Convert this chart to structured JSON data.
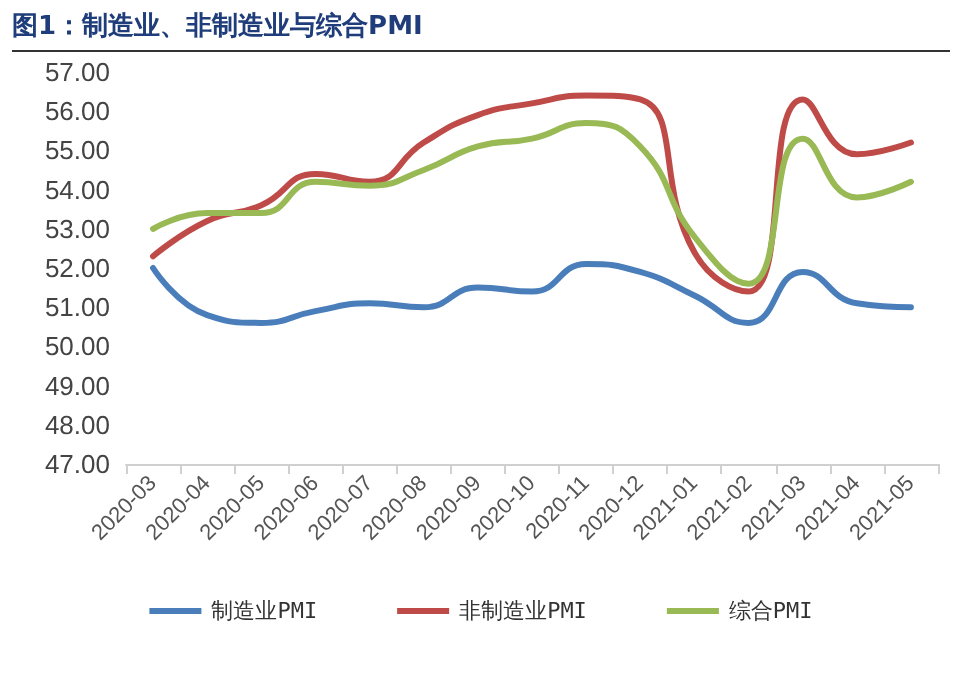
{
  "chart_data": {
    "type": "line",
    "title": "图1：制造业、非制造业与综合PMI",
    "categories": [
      "2020-03",
      "2020-04",
      "2020-05",
      "2020-06",
      "2020-07",
      "2020-08",
      "2020-09",
      "2020-10",
      "2020-11",
      "2020-12",
      "2021-01",
      "2021-02",
      "2021-03",
      "2021-04",
      "2021-05"
    ],
    "series": [
      {
        "name": "制造业PMI",
        "color": "#4a7ebb",
        "values": [
          52.0,
          50.8,
          50.6,
          50.9,
          51.1,
          51.0,
          51.5,
          51.4,
          52.1,
          51.9,
          51.3,
          50.6,
          51.9,
          51.1,
          51.0
        ]
      },
      {
        "name": "非制造业PMI",
        "color": "#be4b48",
        "values": [
          52.3,
          53.2,
          53.6,
          54.4,
          54.2,
          55.2,
          55.9,
          56.2,
          56.4,
          56.3,
          52.4,
          51.4,
          56.3,
          54.9,
          55.2
        ]
      },
      {
        "name": "综合PMI",
        "color": "#98b954",
        "values": [
          53.0,
          53.4,
          53.4,
          54.2,
          54.1,
          54.5,
          55.1,
          55.3,
          55.7,
          55.1,
          52.8,
          51.6,
          55.3,
          53.8,
          54.2
        ]
      }
    ],
    "ylim": [
      47,
      57
    ],
    "yticks": [
      {
        "value": 47,
        "label": "47.00"
      },
      {
        "value": 48,
        "label": "48.00"
      },
      {
        "value": 49,
        "label": "49.00"
      },
      {
        "value": 50,
        "label": "50.00"
      },
      {
        "value": 51,
        "label": "51.00"
      },
      {
        "value": 52,
        "label": "52.00"
      },
      {
        "value": 53,
        "label": "53.00"
      },
      {
        "value": 54,
        "label": "54.00"
      },
      {
        "value": 55,
        "label": "55.00"
      },
      {
        "value": 56,
        "label": "56.00"
      },
      {
        "value": 57,
        "label": "57.00"
      }
    ],
    "grid": false,
    "legend": "bottom",
    "marker": "none",
    "line_style": "solid"
  }
}
